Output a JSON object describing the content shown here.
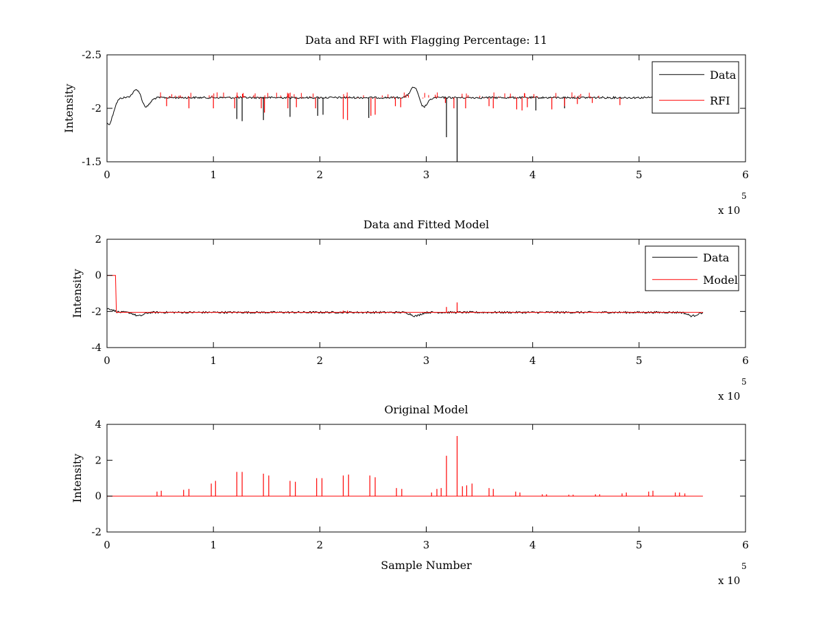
{
  "chart_data": [
    {
      "type": "line",
      "title": "Data and RFI with Flagging Percentage: 11",
      "xlabel": "",
      "ylabel": "Intensity",
      "xlim": [
        0,
        600000
      ],
      "ylim": [
        -2.5,
        -1.5
      ],
      "y_reversed": true,
      "xticks": [
        0,
        100000,
        200000,
        300000,
        400000,
        500000,
        600000
      ],
      "xtick_labels": [
        "0",
        "1",
        "2",
        "3",
        "4",
        "5",
        "6"
      ],
      "yticks": [
        -2.5,
        -2,
        -1.5
      ],
      "ytick_labels": [
        "-2.5",
        "-2",
        "-1.5"
      ],
      "x_multiplier_label": "x 10",
      "x_multiplier_exponent": "5",
      "legend_position": "top-right",
      "grid": false,
      "series": [
        {
          "name": "Data",
          "color": "#000000",
          "baseline": -2.1,
          "x_end": 560000,
          "features": [
            {
              "x": 1500,
              "y": -1.85
            },
            {
              "x": 30000,
              "y": -2.22
            },
            {
              "x": 35000,
              "y": -1.97
            },
            {
              "x": 290000,
              "y": -2.23
            },
            {
              "x": 296000,
              "y": -1.98
            },
            {
              "x": 550000,
              "y": -2.22
            },
            {
              "x": 556000,
              "y": -1.98
            }
          ],
          "spikes": [
            {
              "x": 122000,
              "y": -1.9
            },
            {
              "x": 127000,
              "y": -1.88
            },
            {
              "x": 147000,
              "y": -1.89
            },
            {
              "x": 172000,
              "y": -1.92
            },
            {
              "x": 198000,
              "y": -1.93
            },
            {
              "x": 203000,
              "y": -1.94
            },
            {
              "x": 246000,
              "y": -1.91
            },
            {
              "x": 319000,
              "y": -1.73
            },
            {
              "x": 329000,
              "y": -1.4
            },
            {
              "x": 403000,
              "y": -1.98
            },
            {
              "x": 430000,
              "y": -2.0
            }
          ]
        },
        {
          "name": "RFI",
          "color": "#ff0000",
          "baseline": -2.1,
          "spikes": [
            {
              "x": 56000,
              "y": -2.02
            },
            {
              "x": 77000,
              "y": -2.0
            },
            {
              "x": 100000,
              "y": -2.0
            },
            {
              "x": 120000,
              "y": -2.0
            },
            {
              "x": 145000,
              "y": -2.0
            },
            {
              "x": 148000,
              "y": -1.96
            },
            {
              "x": 170000,
              "y": -2.0
            },
            {
              "x": 178000,
              "y": -2.01
            },
            {
              "x": 196000,
              "y": -2.0
            },
            {
              "x": 222000,
              "y": -1.9
            },
            {
              "x": 226000,
              "y": -1.89
            },
            {
              "x": 248000,
              "y": -1.93
            },
            {
              "x": 252000,
              "y": -1.94
            },
            {
              "x": 271000,
              "y": -2.02
            },
            {
              "x": 276000,
              "y": -2.01
            },
            {
              "x": 318000,
              "y": -2.05
            },
            {
              "x": 326000,
              "y": -2.0
            },
            {
              "x": 337000,
              "y": -2.0
            },
            {
              "x": 359000,
              "y": -2.02
            },
            {
              "x": 363000,
              "y": -2.0
            },
            {
              "x": 385000,
              "y": -1.99
            },
            {
              "x": 390000,
              "y": -1.98
            },
            {
              "x": 395000,
              "y": -2.01
            },
            {
              "x": 418000,
              "y": -1.99
            },
            {
              "x": 430000,
              "y": -2.02
            },
            {
              "x": 442000,
              "y": -2.04
            },
            {
              "x": 456000,
              "y": -2.05
            },
            {
              "x": 482000,
              "y": -2.03
            }
          ]
        }
      ]
    },
    {
      "type": "line",
      "title": "Data and Fitted Model",
      "xlabel": "",
      "ylabel": "Intensity",
      "xlim": [
        0,
        600000
      ],
      "ylim": [
        -4,
        2
      ],
      "xticks": [
        0,
        100000,
        200000,
        300000,
        400000,
        500000,
        600000
      ],
      "xtick_labels": [
        "0",
        "1",
        "2",
        "3",
        "4",
        "5",
        "6"
      ],
      "yticks": [
        -4,
        -2,
        0,
        2
      ],
      "ytick_labels": [
        "-4",
        "-2",
        "0",
        "2"
      ],
      "x_multiplier_label": "x 10",
      "x_multiplier_exponent": "5",
      "legend_position": "top-right",
      "grid": false,
      "series": [
        {
          "name": "Data",
          "color": "#000000",
          "baseline": -2.05,
          "x_end": 560000,
          "features": [
            {
              "x": 1500,
              "y": -1.85
            },
            {
              "x": 30000,
              "y": -2.25
            },
            {
              "x": 290000,
              "y": -2.25
            },
            {
              "x": 550000,
              "y": -2.25
            }
          ]
        },
        {
          "name": "Model",
          "color": "#ff0000",
          "baseline": -2.05,
          "x_end": 560000,
          "step": {
            "x_start": 0,
            "x_end": 8000,
            "y": 0
          },
          "spikes": [
            {
              "x": 319000,
              "y": -1.75
            },
            {
              "x": 329000,
              "y": -1.5
            },
            {
              "x": 222000,
              "y": -1.95
            },
            {
              "x": 226000,
              "y": -1.95
            }
          ]
        }
      ]
    },
    {
      "type": "line",
      "title": "Original Model",
      "xlabel": "Sample Number",
      "ylabel": "Intensity",
      "xlim": [
        0,
        600000
      ],
      "ylim": [
        -2,
        4
      ],
      "xticks": [
        0,
        100000,
        200000,
        300000,
        400000,
        500000,
        600000
      ],
      "xtick_labels": [
        "0",
        "1",
        "2",
        "3",
        "4",
        "5",
        "6"
      ],
      "yticks": [
        -2,
        0,
        2,
        4
      ],
      "ytick_labels": [
        "-2",
        "0",
        "2",
        "4"
      ],
      "x_multiplier_label": "x 10",
      "x_multiplier_exponent": "5",
      "grid": false,
      "series": [
        {
          "color": "#ff0000",
          "baseline": 0,
          "x_end": 560000,
          "spikes": [
            {
              "x": 47000,
              "y": 0.25
            },
            {
              "x": 51000,
              "y": 0.3
            },
            {
              "x": 72000,
              "y": 0.35
            },
            {
              "x": 77000,
              "y": 0.4
            },
            {
              "x": 98000,
              "y": 0.7
            },
            {
              "x": 102000,
              "y": 0.85
            },
            {
              "x": 122000,
              "y": 1.35
            },
            {
              "x": 127000,
              "y": 1.35
            },
            {
              "x": 147000,
              "y": 1.25
            },
            {
              "x": 152000,
              "y": 1.15
            },
            {
              "x": 172000,
              "y": 0.85
            },
            {
              "x": 177000,
              "y": 0.8
            },
            {
              "x": 197000,
              "y": 1.0
            },
            {
              "x": 202000,
              "y": 1.0
            },
            {
              "x": 222000,
              "y": 1.15
            },
            {
              "x": 227000,
              "y": 1.2
            },
            {
              "x": 247000,
              "y": 1.15
            },
            {
              "x": 252000,
              "y": 1.05
            },
            {
              "x": 272000,
              "y": 0.45
            },
            {
              "x": 277000,
              "y": 0.4
            },
            {
              "x": 305000,
              "y": 0.2
            },
            {
              "x": 310000,
              "y": 0.4
            },
            {
              "x": 314000,
              "y": 0.45
            },
            {
              "x": 319000,
              "y": 2.25
            },
            {
              "x": 329000,
              "y": 3.35
            },
            {
              "x": 334000,
              "y": 0.55
            },
            {
              "x": 338000,
              "y": 0.6
            },
            {
              "x": 343000,
              "y": 0.7
            },
            {
              "x": 359000,
              "y": 0.45
            },
            {
              "x": 363000,
              "y": 0.4
            },
            {
              "x": 384000,
              "y": 0.25
            },
            {
              "x": 388000,
              "y": 0.2
            },
            {
              "x": 409000,
              "y": 0.1
            },
            {
              "x": 413000,
              "y": 0.1
            },
            {
              "x": 434000,
              "y": 0.08
            },
            {
              "x": 438000,
              "y": 0.08
            },
            {
              "x": 459000,
              "y": 0.1
            },
            {
              "x": 463000,
              "y": 0.1
            },
            {
              "x": 484000,
              "y": 0.15
            },
            {
              "x": 488000,
              "y": 0.2
            },
            {
              "x": 509000,
              "y": 0.25
            },
            {
              "x": 513000,
              "y": 0.3
            },
            {
              "x": 534000,
              "y": 0.2
            },
            {
              "x": 538000,
              "y": 0.2
            },
            {
              "x": 543000,
              "y": 0.15
            }
          ]
        }
      ]
    }
  ]
}
